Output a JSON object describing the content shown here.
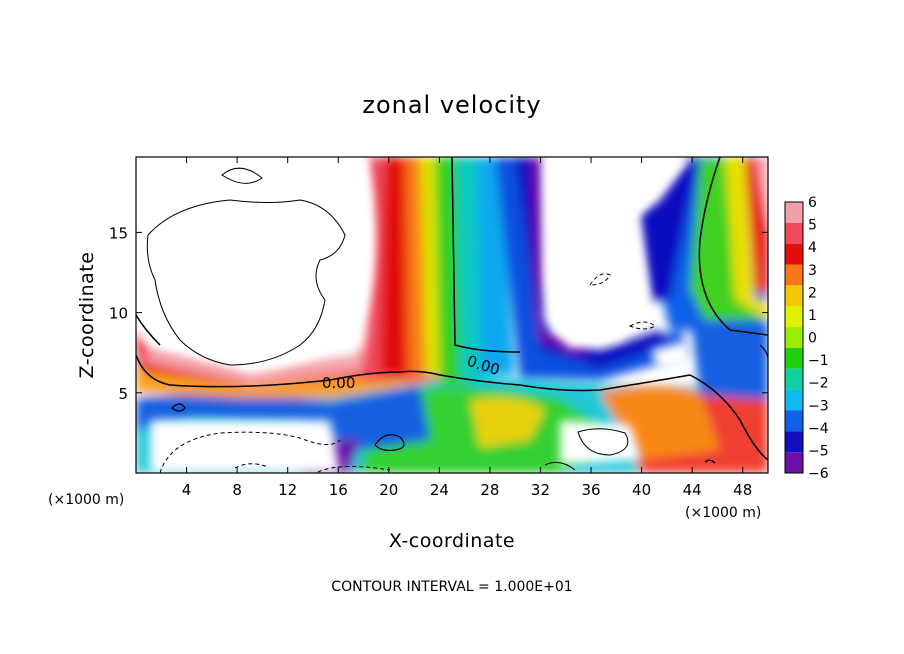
{
  "chart_data": {
    "type": "heatmap",
    "title": "zonal velocity",
    "xlabel": "X-coordinate",
    "ylabel": "Z-coordinate",
    "x_unit": "(×1000 m)",
    "z_unit": "(×1000 m)",
    "xlim": [
      0,
      50
    ],
    "ylim": [
      0,
      19.7
    ],
    "x_ticks": [
      4,
      8,
      12,
      16,
      20,
      24,
      28,
      32,
      36,
      40,
      44,
      48
    ],
    "y_ticks": [
      5,
      10,
      15
    ],
    "colorbar": {
      "levels": [
        6,
        5,
        4,
        3,
        2,
        1,
        0,
        -1,
        -2,
        -3,
        -4,
        -5,
        -6
      ],
      "colors": [
        "#f4a0a8",
        "#f04a5a",
        "#e01010",
        "#f87818",
        "#f4c800",
        "#e0f000",
        "#9aec00",
        "#20d010",
        "#10d0a0",
        "#10b8f0",
        "#1060e8",
        "#1010c0",
        "#6a10a8"
      ]
    },
    "contour_labels": [
      "0.00",
      "0.00"
    ],
    "field_description": "Strong positive zonal velocity column near x=20, negative column near x=28, near-zero regions upper-left and upper-right, turbulent mixed layer below z=7.",
    "footer": "CONTOUR INTERVAL = 1.000E+01"
  }
}
